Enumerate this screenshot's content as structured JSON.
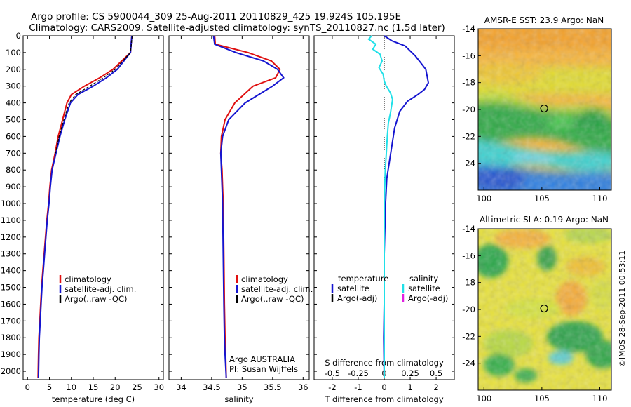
{
  "title_line1": "Argo profile: CS 5900044_309 25-Aug-2011 20110829_425 19.924S 105.195E",
  "title_line2": "Climatology: CARS2009. Satellite-adjusted climatology: synTS_20110827.nc (1.5d later)",
  "side_text": "©IMOS 28-Sep-2011 00:53:11",
  "colors": {
    "climatology": "#e01010",
    "satellite": "#1515d0",
    "argo": "#000000",
    "sal_satellite": "#20e0e8",
    "sal_argo": "#e020e0"
  },
  "chart_data": [
    {
      "type": "line",
      "name": "temperature",
      "xlabel": "temperature (deg C)",
      "xlim": [
        -1,
        31
      ],
      "ylim": [
        0,
        2050
      ],
      "xticks": [
        "0",
        "5",
        "10",
        "15",
        "20",
        "25",
        "30"
      ],
      "xtick_values": [
        0,
        5,
        10,
        15,
        20,
        25,
        30
      ],
      "yticks": [
        "0",
        "100",
        "200",
        "300",
        "400",
        "500",
        "600",
        "700",
        "800",
        "900",
        "1000",
        "1100",
        "1200",
        "1300",
        "1400",
        "1500",
        "1600",
        "1700",
        "1800",
        "1900",
        "2000"
      ],
      "ytick_values": [
        0,
        100,
        200,
        300,
        400,
        500,
        600,
        700,
        800,
        900,
        1000,
        1100,
        1200,
        1300,
        1400,
        1500,
        1600,
        1700,
        1800,
        1900,
        2000
      ],
      "legend": [
        "climatology",
        "satellite-adj. clim.",
        "Argo(..raw -QC)"
      ],
      "series": [
        {
          "name": "climatology",
          "color": "#e01010",
          "x": [
            23.8,
            23.5,
            19.5,
            16.5,
            13.0,
            10.0,
            9.0,
            8.0,
            7.0,
            6.3,
            5.5,
            5.1,
            4.8,
            4.4,
            4.1,
            3.8,
            3.5,
            3.2,
            3.0,
            2.8,
            2.6,
            2.5,
            2.4
          ],
          "y": [
            0,
            100,
            200,
            250,
            300,
            350,
            400,
            500,
            600,
            700,
            800,
            900,
            1000,
            1100,
            1200,
            1300,
            1400,
            1500,
            1600,
            1700,
            1800,
            1900,
            2040
          ]
        },
        {
          "name": "satellite-adj. clim.",
          "color": "#1515d0",
          "x": [
            23.8,
            23.5,
            20.5,
            18.0,
            15.0,
            11.5,
            9.8,
            8.5,
            7.4,
            6.5,
            5.6,
            5.2,
            4.9,
            4.5,
            4.2,
            3.9,
            3.6,
            3.3,
            3.1,
            2.9,
            2.7,
            2.6,
            2.5
          ],
          "y": [
            0,
            100,
            200,
            250,
            300,
            350,
            400,
            500,
            600,
            700,
            800,
            900,
            1000,
            1100,
            1200,
            1300,
            1400,
            1500,
            1600,
            1700,
            1800,
            1900,
            2040
          ]
        },
        {
          "name": "Argo(..raw -QC)",
          "color": "#000000",
          "x": [
            23.9,
            23.5,
            20.0,
            17.3,
            14.2,
            11.0,
            9.5,
            8.3,
            7.2,
            6.4
          ],
          "y": [
            0,
            100,
            200,
            250,
            300,
            350,
            400,
            500,
            600,
            700
          ]
        }
      ]
    },
    {
      "type": "line",
      "name": "salinity",
      "xlabel": "salinity",
      "xlim": [
        33.8,
        36.1
      ],
      "ylim": [
        0,
        2050
      ],
      "xticks": [
        "34",
        "34.5",
        "35",
        "35.5",
        "36"
      ],
      "xtick_values": [
        34,
        34.5,
        35,
        35.5,
        36
      ],
      "legend": [
        "climatology",
        "satellite-adj. clim.",
        "Argo(..raw -QC)"
      ],
      "annotation": [
        "Argo AUSTRALIA",
        "PI: Susan Wijffels"
      ],
      "series": [
        {
          "name": "climatology",
          "color": "#e01010",
          "x": [
            34.55,
            34.56,
            35.1,
            35.48,
            35.62,
            35.55,
            35.18,
            34.88,
            34.72,
            34.66,
            34.65,
            34.67,
            34.68,
            34.69,
            34.7,
            34.71,
            34.72,
            34.73,
            34.74
          ],
          "y": [
            0,
            50,
            100,
            150,
            200,
            250,
            300,
            400,
            500,
            600,
            700,
            800,
            900,
            1000,
            1300,
            1600,
            1800,
            1900,
            2040
          ]
        },
        {
          "name": "satellite-adj. clim.",
          "color": "#1515d0",
          "x": [
            34.53,
            34.55,
            34.9,
            35.35,
            35.58,
            35.68,
            35.5,
            35.05,
            34.78,
            34.68,
            34.65,
            34.66,
            34.67,
            34.68,
            34.69,
            34.7,
            34.71,
            34.72,
            34.74
          ],
          "y": [
            0,
            50,
            100,
            150,
            200,
            250,
            300,
            400,
            500,
            600,
            700,
            800,
            900,
            1000,
            1300,
            1600,
            1800,
            1900,
            2040
          ]
        }
      ]
    },
    {
      "type": "line",
      "name": "differences",
      "xlabel": "T difference from climatology",
      "xlabel2": "S difference from climatology",
      "xlim": [
        -2.7,
        2.7
      ],
      "ylim": [
        0,
        2050
      ],
      "xticks": [
        "-2",
        "-1",
        "0",
        "1",
        "2"
      ],
      "xtick_values": [
        -2,
        -1,
        0,
        1,
        2
      ],
      "xticks2": [
        "-0.5",
        "-0.25",
        "0",
        "0.25",
        "0.5"
      ],
      "xtick2_values": [
        -0.5,
        -0.25,
        0,
        0.25,
        0.5
      ],
      "legend_temperature_title": "temperature",
      "legend_salinity_title": "salinity",
      "legend_temperature": [
        "satellite",
        "Argo(-adj)"
      ],
      "legend_salinity": [
        "satellite",
        "Argo(-adj)"
      ],
      "series": [
        {
          "name": "temperature satellite",
          "color": "#1515d0",
          "x": [
            0.0,
            0.3,
            0.8,
            1.0,
            1.2,
            1.4,
            1.6,
            1.7,
            1.55,
            1.3,
            0.9,
            0.6,
            0.4,
            0.3,
            0.2,
            0.1,
            0.05,
            0.0,
            0.0,
            -0.02,
            0.0
          ],
          "y": [
            0,
            30,
            60,
            90,
            120,
            160,
            200,
            280,
            320,
            350,
            390,
            450,
            550,
            650,
            750,
            850,
            1000,
            1300,
            1600,
            1800,
            2040
          ]
        },
        {
          "name": "salinity satellite",
          "color": "#20e0e8",
          "x": [
            -0.12,
            -0.15,
            -0.08,
            -0.11,
            -0.04,
            -0.02,
            -0.05,
            -0.01,
            0.0,
            0.02,
            0.06,
            0.08,
            0.07,
            0.06,
            0.04,
            0.03,
            0.02,
            0.01,
            0.0,
            0.0,
            0.0
          ],
          "y": [
            0,
            20,
            50,
            80,
            110,
            150,
            190,
            230,
            270,
            300,
            340,
            380,
            420,
            460,
            520,
            600,
            700,
            800,
            1000,
            1500,
            2040
          ]
        }
      ]
    }
  ],
  "maps": [
    {
      "name": "sst",
      "title": "AMSR-E SST: 23.9 Argo: NaN",
      "xticks": [
        "100",
        "105",
        "110"
      ],
      "xtick_values": [
        100,
        105,
        110
      ],
      "yticks": [
        "-14",
        "-16",
        "-18",
        "-20",
        "-22",
        "-24"
      ],
      "ytick_values": [
        -14,
        -16,
        -18,
        -20,
        -22,
        -24
      ],
      "xlim": [
        99.5,
        111
      ],
      "ylim": [
        -26,
        -14
      ],
      "marker": {
        "lon": 105.195,
        "lat": -19.924
      }
    },
    {
      "name": "sla",
      "title": "Altimetric SLA: 0.19 Argo: NaN",
      "xticks": [
        "100",
        "105",
        "110"
      ],
      "xtick_values": [
        100,
        105,
        110
      ],
      "yticks": [
        "-14",
        "-16",
        "-18",
        "-20",
        "-22",
        "-24"
      ],
      "ytick_values": [
        -14,
        -16,
        -18,
        -20,
        -22,
        -24
      ],
      "xlim": [
        99.5,
        111
      ],
      "ylim": [
        -26,
        -14
      ],
      "marker": {
        "lon": 105.195,
        "lat": -19.924
      }
    }
  ]
}
